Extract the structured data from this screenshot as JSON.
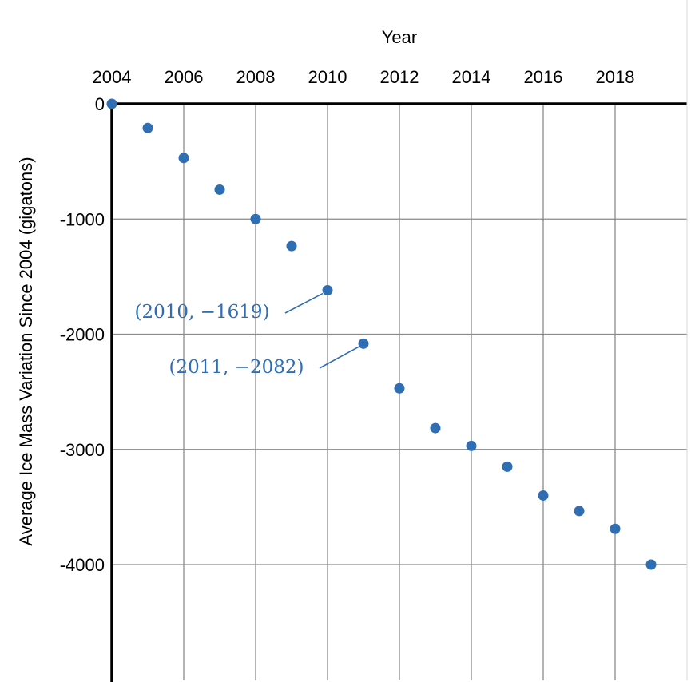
{
  "chart_data": {
    "type": "scatter",
    "title": "",
    "xlabel": "Year",
    "ylabel": "Average Ice Mass Variation Since 2004 (gigatons)",
    "x_axis_position": "top",
    "xlim": [
      2004,
      2020
    ],
    "ylim": [
      -5000,
      0
    ],
    "x_ticks": [
      2004,
      2006,
      2008,
      2010,
      2012,
      2014,
      2016,
      2018
    ],
    "y_ticks": [
      0,
      -1000,
      -2000,
      -3000,
      -4000
    ],
    "x_tick_labels": [
      "2004",
      "2006",
      "2008",
      "2010",
      "2012",
      "2014",
      "2016",
      "2018"
    ],
    "y_tick_labels": [
      "0",
      "-1000",
      "-2000",
      "-3000",
      "-4000"
    ],
    "grid": true,
    "point_color": "#2f6eb3",
    "points": [
      {
        "x": 2004,
        "y": 0
      },
      {
        "x": 2005,
        "y": -210
      },
      {
        "x": 2006,
        "y": -470
      },
      {
        "x": 2007,
        "y": -745
      },
      {
        "x": 2008,
        "y": -1000
      },
      {
        "x": 2009,
        "y": -1235
      },
      {
        "x": 2010,
        "y": -1619
      },
      {
        "x": 2011,
        "y": -2082
      },
      {
        "x": 2012,
        "y": -2470
      },
      {
        "x": 2013,
        "y": -2815
      },
      {
        "x": 2014,
        "y": -2970
      },
      {
        "x": 2015,
        "y": -3150
      },
      {
        "x": 2016,
        "y": -3400
      },
      {
        "x": 2017,
        "y": -3535
      },
      {
        "x": 2018,
        "y": -3690
      },
      {
        "x": 2019,
        "y": -4000
      }
    ],
    "annotations": [
      {
        "text": "(2010, −1619)",
        "x": 2010,
        "y": -1619,
        "side": "left"
      },
      {
        "text": "(2011, −2082)",
        "x": 2011,
        "y": -2082,
        "side": "left"
      }
    ]
  }
}
